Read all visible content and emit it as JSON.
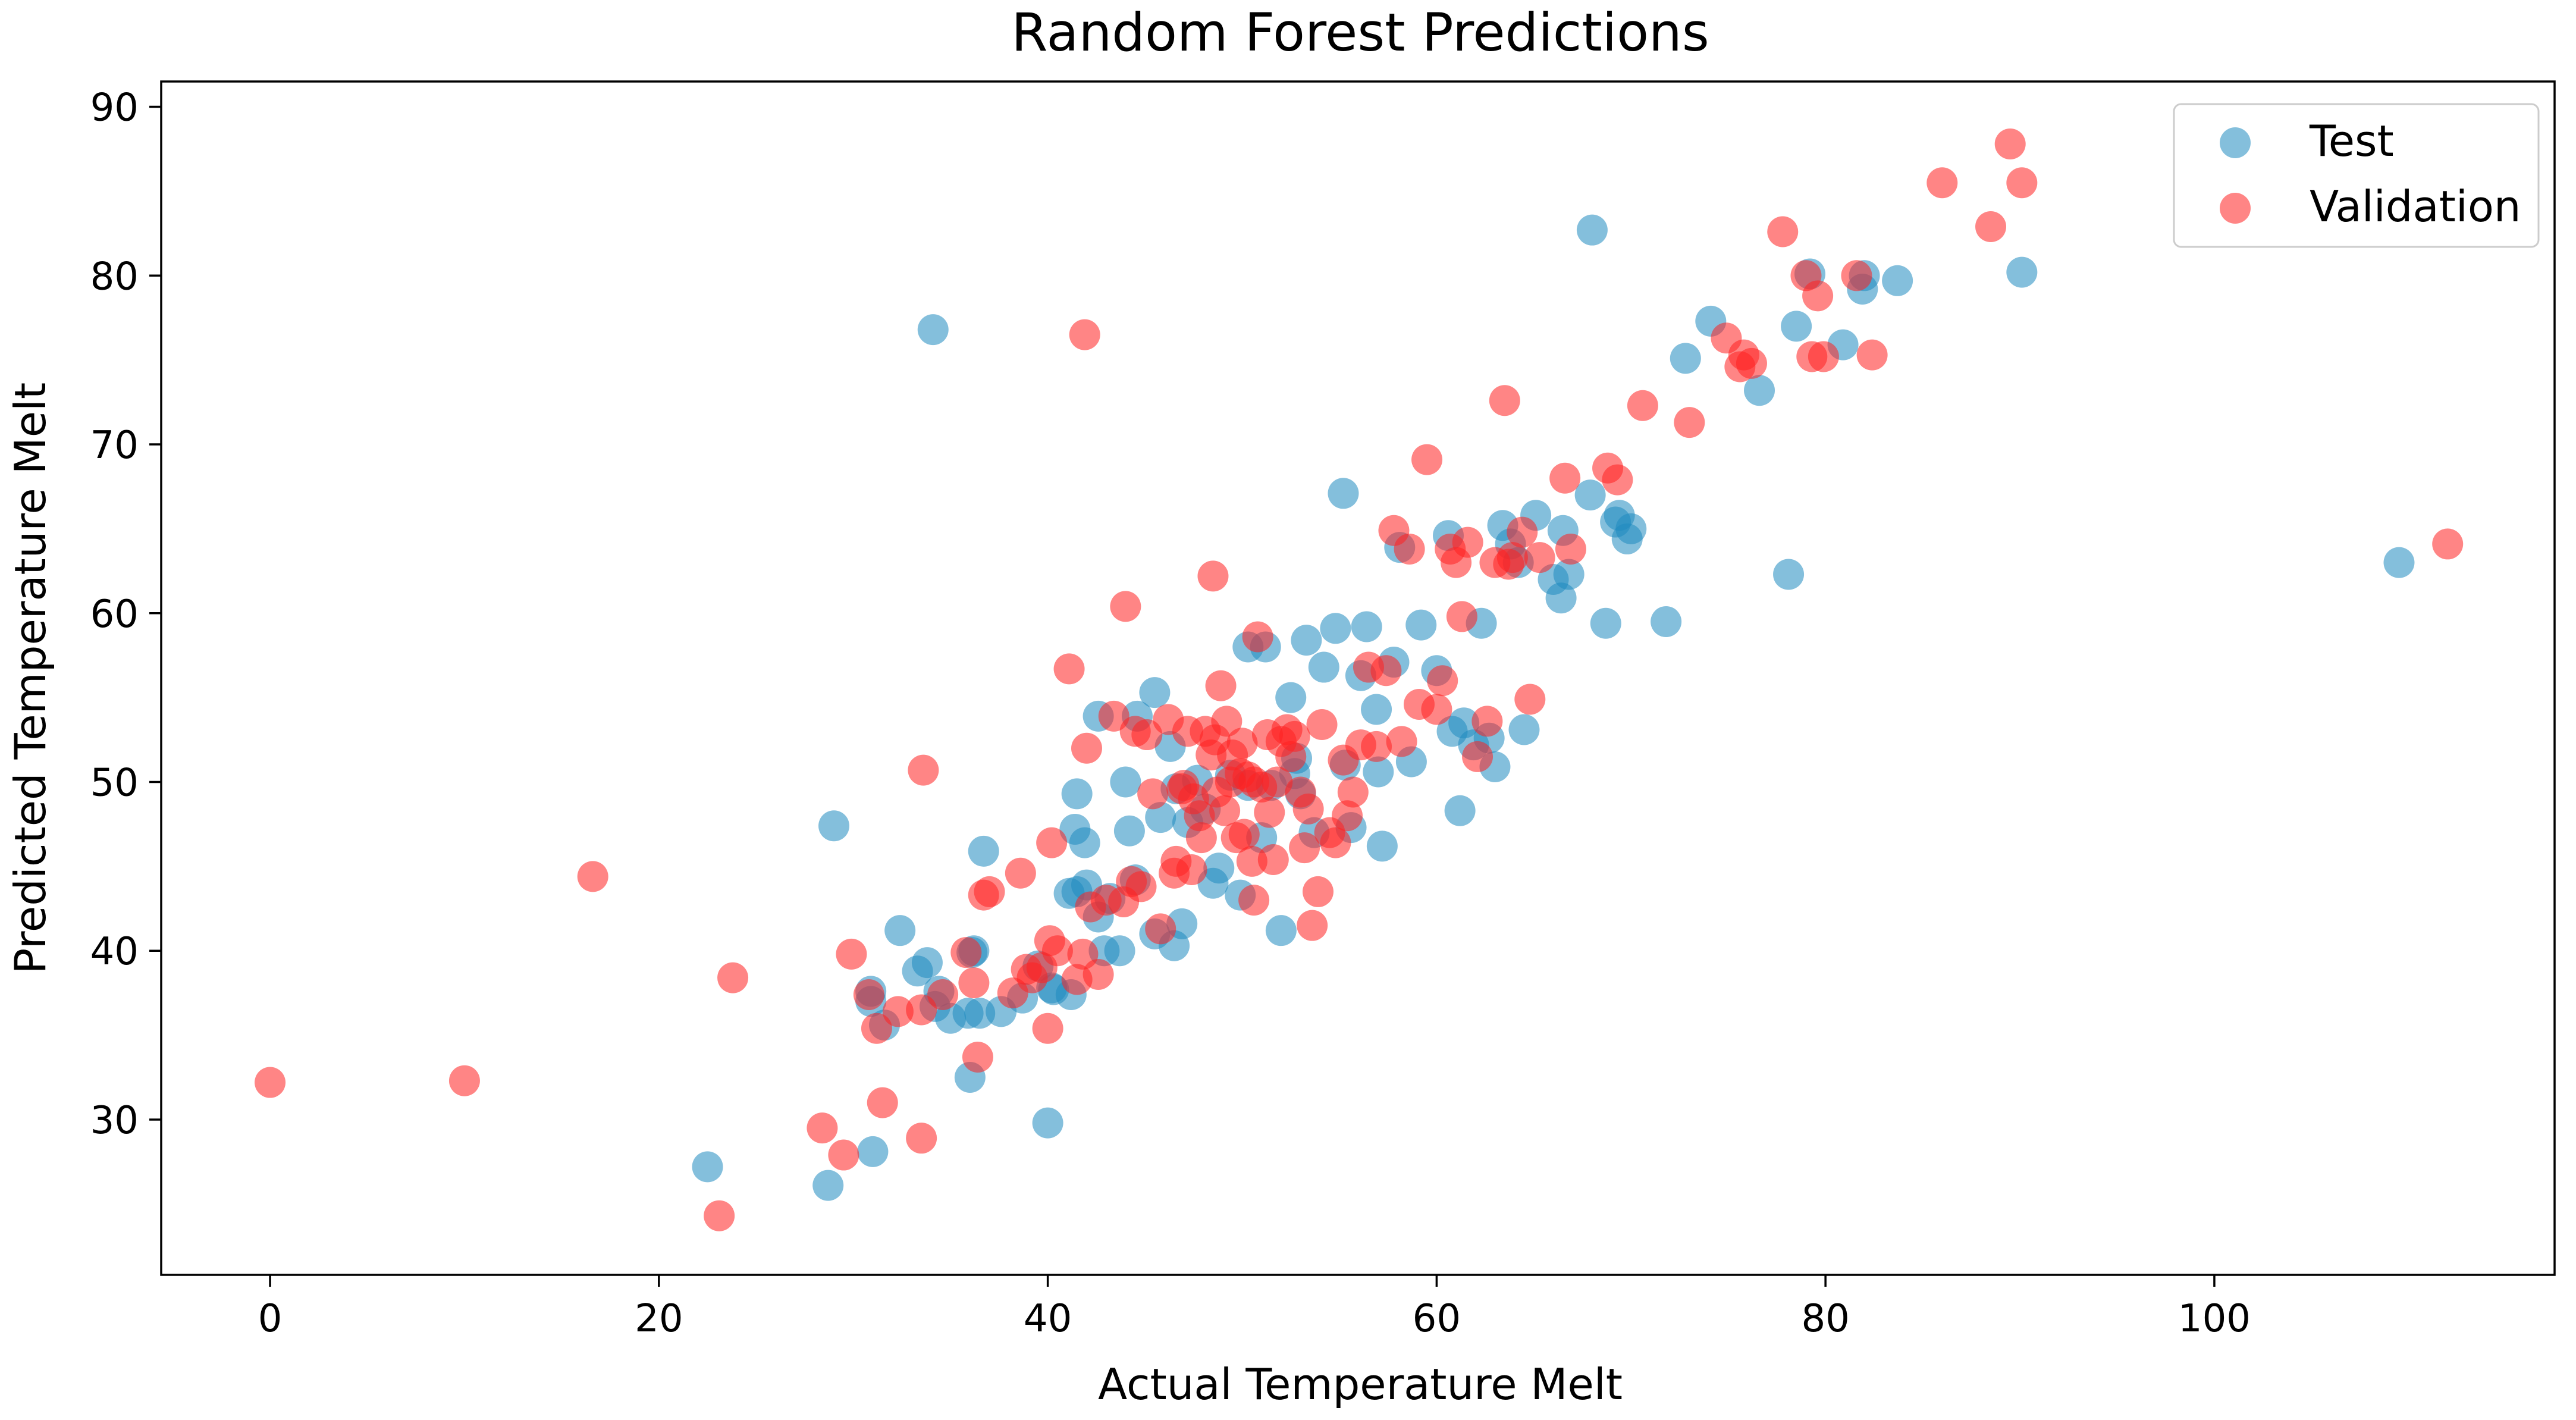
{
  "chart_data": {
    "type": "scatter",
    "title": "Random Forest Predictions",
    "xlabel": "Actual Temperature Melt",
    "ylabel": "Predicted Temperature Melt",
    "xlim": [
      -5.6,
      117.5
    ],
    "ylim": [
      20.8,
      91.5
    ],
    "xticks": [
      0,
      20,
      40,
      60,
      80,
      100
    ],
    "yticks": [
      30,
      40,
      50,
      60,
      70,
      80,
      90
    ],
    "grid": false,
    "legend_position": "top-right",
    "series": [
      {
        "name": "Test",
        "color": "#1f8ac0",
        "x": [
          22.5,
          28.7,
          29.0,
          31.0,
          30.9,
          32.4,
          33.3,
          33.8,
          34.2,
          34.4,
          35.0,
          36.0,
          36.5,
          36.2,
          36.7,
          37.6,
          36.1,
          38.7,
          39.5,
          40.0,
          40.3,
          41.1,
          41.2,
          41.4,
          41.5,
          41.9,
          42.0,
          42.6,
          42.9,
          43.2,
          43.7,
          44.0,
          44.2,
          44.6,
          45.5,
          45.5,
          45.8,
          46.5,
          46.3,
          46.9,
          47.2,
          47.7,
          48.1,
          48.5,
          48.8,
          49.4,
          49.9,
          50.3,
          50.3,
          51.0,
          51.2,
          51.5,
          52.0,
          52.5,
          52.7,
          53.0,
          53.3,
          53.7,
          54.2,
          54.8,
          55.2,
          55.3,
          55.6,
          56.1,
          56.4,
          56.9,
          57.2,
          57.0,
          57.8,
          58.1,
          58.7,
          59.2,
          60.0,
          60.6,
          60.8,
          61.2,
          61.4,
          61.9,
          62.3,
          62.7,
          63.0,
          63.4,
          63.8,
          64.2,
          64.5,
          65.1,
          66.0,
          66.4,
          66.5,
          66.8,
          67.9,
          68.7,
          69.2,
          69.4,
          69.8,
          70.0,
          71.8,
          72.8,
          74.1,
          76.6,
          78.1,
          78.5,
          79.2,
          80.9,
          81.9,
          82.0,
          83.7,
          90.1,
          109.5,
          68.0,
          34.1,
          42.6,
          30.9,
          31.6,
          35.9,
          40.2,
          41.5,
          44.5,
          46.6,
          52.8
        ],
        "y": [
          27.2,
          26.1,
          47.4,
          28.1,
          37.6,
          41.2,
          38.8,
          39.3,
          36.7,
          37.6,
          36.0,
          32.5,
          36.3,
          40.0,
          45.9,
          36.4,
          39.9,
          37.2,
          39.1,
          29.8,
          37.7,
          43.4,
          37.4,
          47.2,
          49.3,
          46.4,
          43.9,
          53.9,
          40.0,
          43.1,
          40.0,
          50.0,
          47.1,
          53.9,
          41.0,
          55.3,
          47.9,
          40.3,
          52.1,
          41.6,
          47.6,
          50.1,
          48.4,
          44.0,
          44.9,
          50.4,
          43.3,
          49.8,
          58.0,
          46.7,
          58.0,
          49.8,
          41.2,
          55.0,
          50.5,
          49.3,
          58.4,
          47.0,
          56.8,
          59.1,
          67.1,
          51.0,
          47.3,
          56.3,
          59.2,
          54.3,
          46.2,
          50.6,
          57.1,
          63.9,
          51.2,
          59.3,
          56.6,
          64.6,
          53.0,
          48.3,
          53.5,
          52.2,
          59.4,
          52.6,
          50.9,
          65.2,
          64.1,
          63.0,
          53.1,
          65.8,
          62.0,
          60.9,
          64.9,
          62.3,
          67.0,
          59.4,
          65.4,
          65.8,
          64.4,
          65.0,
          59.5,
          75.1,
          77.3,
          73.2,
          62.3,
          77.0,
          80.1,
          75.9,
          79.2,
          80.0,
          79.7,
          80.2,
          63.0,
          82.7,
          76.8,
          42.0,
          37.0,
          35.6,
          36.3,
          37.8,
          43.5,
          44.2,
          49.6,
          51.4
        ]
      },
      {
        "name": "Validation",
        "color": "#ff2020",
        "x": [
          0.0,
          10.0,
          16.6,
          23.1,
          23.8,
          28.4,
          29.5,
          29.9,
          30.8,
          31.2,
          31.5,
          32.3,
          33.5,
          33.6,
          34.6,
          35.8,
          36.2,
          36.4,
          36.7,
          37.0,
          38.2,
          38.6,
          38.9,
          39.2,
          39.7,
          40.0,
          40.1,
          40.2,
          40.5,
          41.1,
          41.5,
          41.8,
          42.0,
          42.2,
          42.6,
          43.0,
          43.4,
          43.9,
          44.3,
          44.5,
          44.8,
          45.1,
          45.4,
          45.8,
          46.2,
          46.5,
          46.6,
          46.9,
          47.0,
          47.2,
          47.4,
          47.5,
          47.8,
          47.9,
          48.1,
          48.4,
          48.6,
          48.7,
          48.9,
          49.1,
          49.2,
          49.4,
          49.5,
          49.7,
          49.9,
          50.0,
          50.1,
          50.3,
          50.5,
          50.6,
          50.8,
          51.0,
          51.3,
          51.4,
          51.6,
          51.8,
          52.0,
          52.3,
          52.5,
          52.7,
          53.0,
          53.2,
          53.4,
          53.6,
          53.9,
          54.1,
          54.5,
          54.8,
          55.2,
          55.4,
          55.7,
          56.1,
          56.5,
          56.9,
          57.4,
          57.8,
          58.2,
          58.6,
          59.1,
          59.5,
          60.0,
          60.3,
          60.7,
          61.0,
          61.3,
          61.6,
          62.1,
          62.6,
          63.0,
          63.5,
          63.9,
          64.4,
          64.8,
          65.3,
          66.6,
          66.9,
          68.8,
          69.3,
          70.6,
          73.0,
          74.9,
          75.6,
          75.8,
          76.2,
          77.8,
          79.0,
          79.3,
          79.6,
          79.9,
          81.6,
          82.4,
          86.0,
          88.5,
          89.5,
          90.1,
          112.0,
          41.9,
          44.0,
          48.5,
          63.7,
          33.5,
          50.6
        ],
        "y": [
          32.2,
          32.3,
          44.4,
          24.3,
          38.4,
          29.5,
          27.9,
          39.8,
          37.4,
          35.4,
          31.0,
          36.4,
          28.9,
          50.7,
          37.4,
          39.9,
          38.1,
          33.7,
          43.3,
          43.5,
          37.5,
          44.6,
          38.9,
          38.4,
          39.0,
          35.4,
          40.6,
          46.4,
          40.0,
          56.7,
          38.3,
          39.8,
          52.0,
          42.6,
          38.6,
          43.0,
          53.9,
          42.9,
          44.1,
          53.0,
          43.8,
          52.8,
          49.3,
          41.3,
          53.7,
          44.6,
          45.3,
          49.6,
          49.8,
          53.0,
          44.8,
          49.0,
          48.0,
          46.7,
          53.0,
          51.6,
          52.5,
          49.4,
          55.7,
          48.3,
          53.6,
          50.0,
          51.6,
          46.7,
          50.5,
          52.3,
          46.9,
          50.3,
          45.3,
          50.0,
          58.6,
          49.7,
          52.8,
          48.2,
          45.4,
          50.0,
          52.4,
          53.1,
          51.5,
          52.7,
          49.4,
          46.1,
          48.4,
          41.5,
          43.5,
          53.4,
          47.0,
          46.4,
          51.3,
          48.0,
          49.4,
          52.2,
          56.8,
          52.1,
          56.6,
          64.9,
          52.4,
          63.8,
          54.6,
          69.1,
          54.3,
          56.0,
          63.8,
          63.0,
          59.8,
          64.2,
          51.5,
          53.6,
          63.0,
          72.6,
          63.3,
          64.8,
          54.9,
          63.3,
          68.0,
          63.8,
          68.6,
          67.9,
          72.3,
          71.3,
          76.3,
          74.6,
          75.3,
          74.8,
          82.6,
          80.0,
          75.2,
          78.8,
          75.2,
          80.0,
          75.3,
          85.5,
          82.9,
          87.8,
          85.5,
          64.1,
          76.5,
          60.4,
          62.2,
          62.9,
          36.5,
          43.0
        ]
      }
    ]
  }
}
